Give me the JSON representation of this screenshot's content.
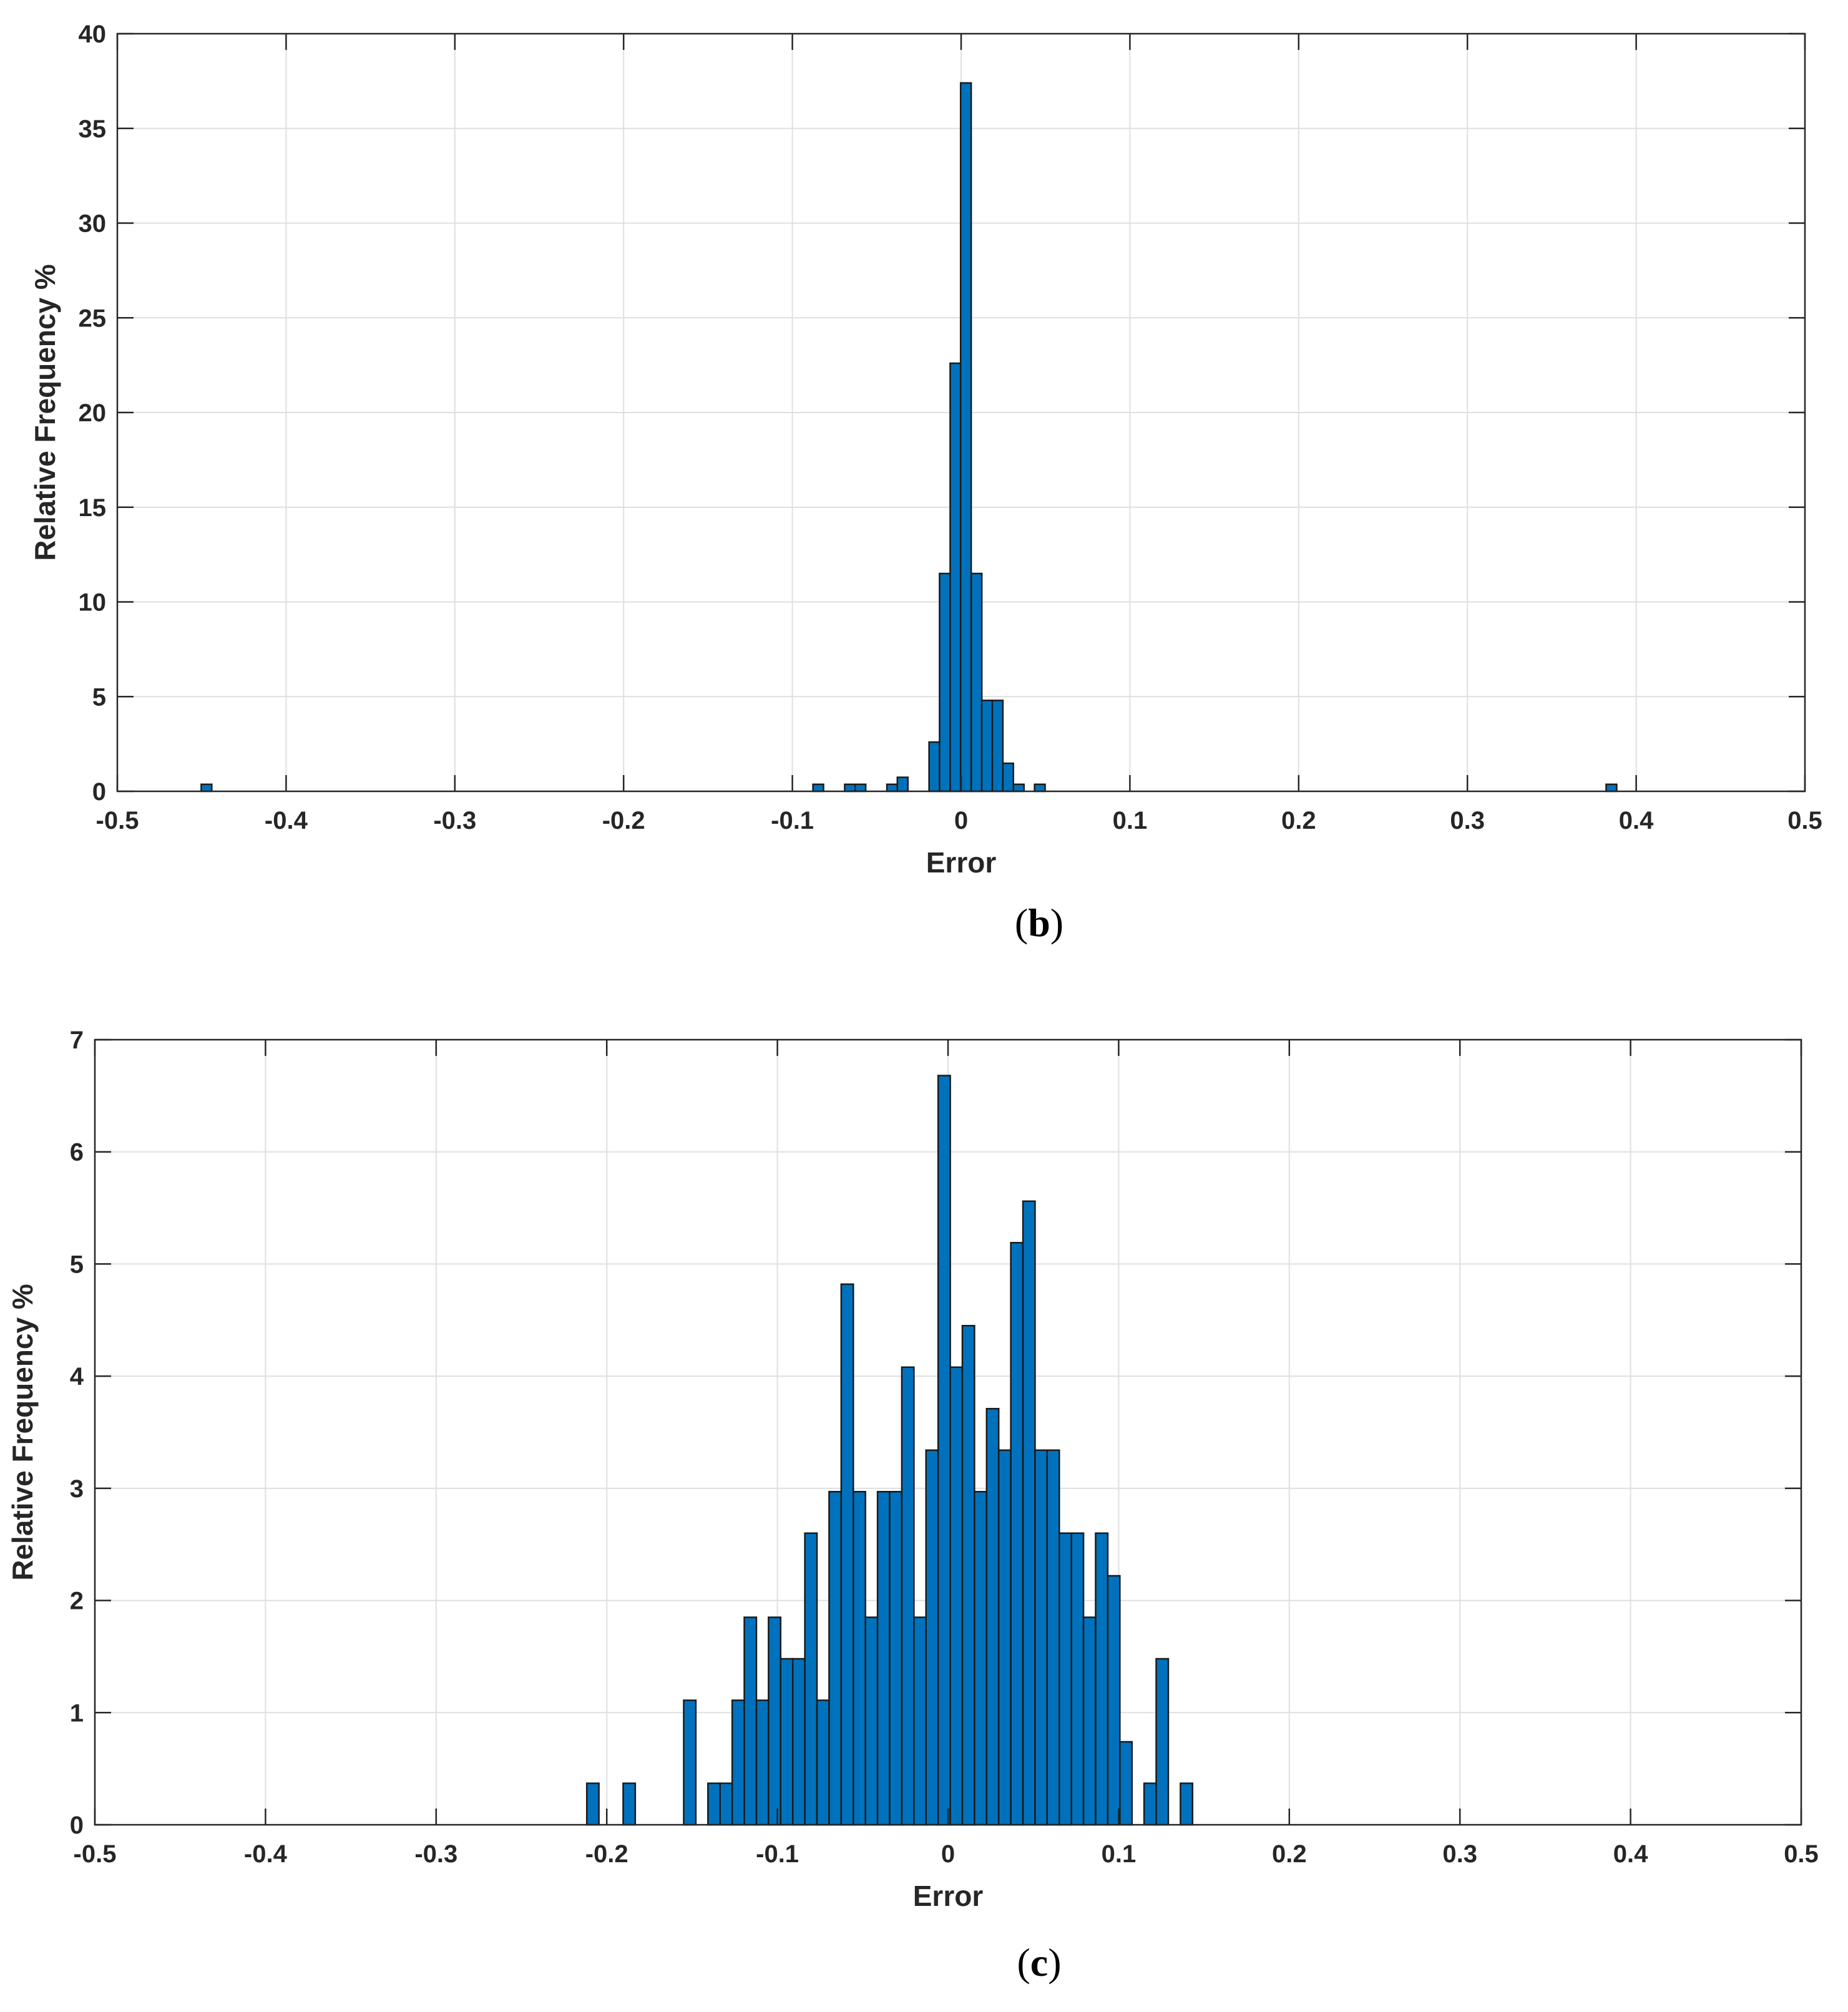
{
  "chart_data": [
    {
      "type": "bar",
      "caption": {
        "open": "(",
        "letter": "b",
        "close": ")"
      },
      "title": "",
      "xlabel": "Error",
      "ylabel": "Relative Frequency %",
      "xlim": [
        -0.5,
        0.5
      ],
      "ylim": [
        0,
        40
      ],
      "xticks": [
        "-0.5",
        "-0.4",
        "-0.3",
        "-0.2",
        "-0.1",
        "0",
        "0.1",
        "0.2",
        "0.3",
        "0.4",
        "0.5"
      ],
      "yticks": [
        "0",
        "5",
        "10",
        "15",
        "20",
        "25",
        "30",
        "35",
        "40"
      ],
      "grid": true,
      "bin_width": 0.00625,
      "bar_color": "#0072BD",
      "edge_color": "#1a1a1a",
      "bars": [
        {
          "x": -0.4503,
          "value": 0.37
        },
        {
          "x": -0.0878,
          "value": 0.37
        },
        {
          "x": -0.069,
          "value": 0.37
        },
        {
          "x": -0.0628,
          "value": 0.37
        },
        {
          "x": -0.044,
          "value": 0.37
        },
        {
          "x": -0.0378,
          "value": 0.74
        },
        {
          "x": -0.019,
          "value": 2.6
        },
        {
          "x": -0.0128,
          "value": 11.5
        },
        {
          "x": -0.0065,
          "value": 22.6
        },
        {
          "x": -0.0003,
          "value": 37.4
        },
        {
          "x": 0.006,
          "value": 11.5
        },
        {
          "x": 0.0122,
          "value": 4.8
        },
        {
          "x": 0.0185,
          "value": 4.8
        },
        {
          "x": 0.0247,
          "value": 1.48
        },
        {
          "x": 0.031,
          "value": 0.37
        },
        {
          "x": 0.0435,
          "value": 0.37
        },
        {
          "x": 0.3822,
          "value": 0.37
        }
      ]
    },
    {
      "type": "bar",
      "caption": {
        "open": "(",
        "letter": "c",
        "close": ")"
      },
      "title": "",
      "xlabel": "Error",
      "ylabel": "Relative Frequency %",
      "xlim": [
        -0.5,
        0.5
      ],
      "ylim": [
        0,
        7
      ],
      "xticks": [
        "-0.5",
        "-0.4",
        "-0.3",
        "-0.2",
        "-0.1",
        "0",
        "0.1",
        "0.2",
        "0.3",
        "0.4",
        "0.5"
      ],
      "yticks": [
        "0",
        "1",
        "2",
        "3",
        "4",
        "5",
        "6",
        "7"
      ],
      "grid": true,
      "bin_width": 0.0071,
      "bar_color": "#0072BD",
      "edge_color": "#1a1a1a",
      "bars": [
        {
          "x": -0.2117,
          "value": 0.37
        },
        {
          "x": -0.1904,
          "value": 0.37
        },
        {
          "x": -0.1549,
          "value": 1.11
        },
        {
          "x": -0.1407,
          "value": 0.37
        },
        {
          "x": -0.1336,
          "value": 0.37
        },
        {
          "x": -0.1265,
          "value": 1.11
        },
        {
          "x": -0.1194,
          "value": 1.85
        },
        {
          "x": -0.1123,
          "value": 1.11
        },
        {
          "x": -0.1052,
          "value": 1.85
        },
        {
          "x": -0.0981,
          "value": 1.48
        },
        {
          "x": -0.091,
          "value": 1.48
        },
        {
          "x": -0.0839,
          "value": 2.6
        },
        {
          "x": -0.0768,
          "value": 1.11
        },
        {
          "x": -0.0697,
          "value": 2.97
        },
        {
          "x": -0.0626,
          "value": 4.82
        },
        {
          "x": -0.0555,
          "value": 2.97
        },
        {
          "x": -0.0484,
          "value": 1.85
        },
        {
          "x": -0.0413,
          "value": 2.97
        },
        {
          "x": -0.0342,
          "value": 2.97
        },
        {
          "x": -0.0271,
          "value": 4.08
        },
        {
          "x": -0.02,
          "value": 1.85
        },
        {
          "x": -0.0129,
          "value": 3.34
        },
        {
          "x": -0.0058,
          "value": 6.68
        },
        {
          "x": 0.0013,
          "value": 4.08
        },
        {
          "x": 0.0084,
          "value": 4.45
        },
        {
          "x": 0.0155,
          "value": 2.97
        },
        {
          "x": 0.0226,
          "value": 3.71
        },
        {
          "x": 0.0297,
          "value": 3.34
        },
        {
          "x": 0.0368,
          "value": 5.19
        },
        {
          "x": 0.0439,
          "value": 5.56
        },
        {
          "x": 0.051,
          "value": 3.34
        },
        {
          "x": 0.0581,
          "value": 3.34
        },
        {
          "x": 0.0652,
          "value": 2.6
        },
        {
          "x": 0.0723,
          "value": 2.6
        },
        {
          "x": 0.0794,
          "value": 1.85
        },
        {
          "x": 0.0865,
          "value": 2.6
        },
        {
          "x": 0.0936,
          "value": 2.22
        },
        {
          "x": 0.1007,
          "value": 0.74
        },
        {
          "x": 0.1149,
          "value": 0.37
        },
        {
          "x": 0.122,
          "value": 1.48
        },
        {
          "x": 0.1362,
          "value": 0.37
        }
      ]
    }
  ]
}
